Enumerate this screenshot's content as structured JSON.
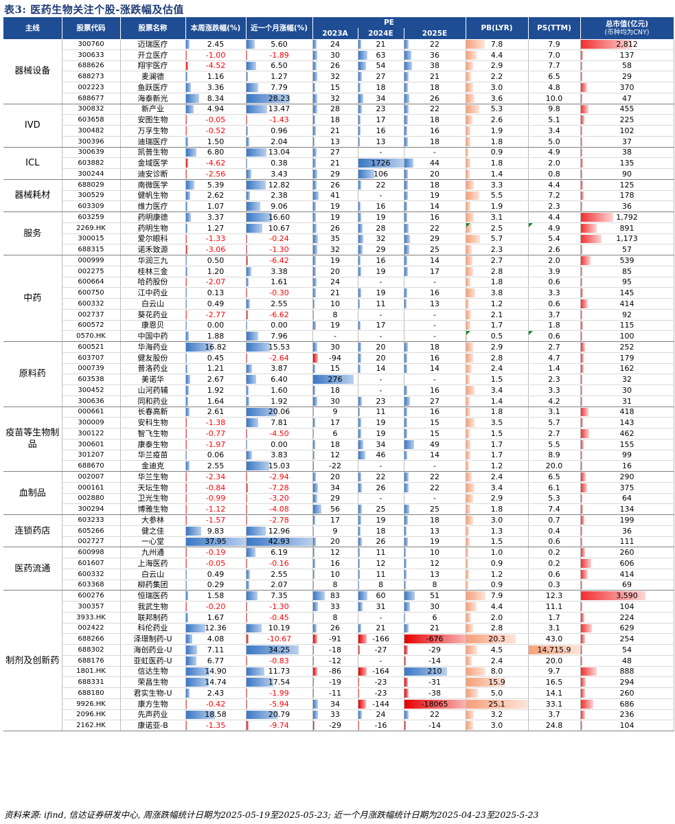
{
  "title": "表3: 医药生物关注个股-涨跌幅及估值",
  "headers": {
    "sector": "主线",
    "code": "股票代码",
    "name": "股票名称",
    "week": "本周涨跌幅(%)",
    "month": "近一个月涨幅(%)",
    "pe": "PE",
    "pe2023": "2023A",
    "pe2024": "2024E",
    "pe2025": "2025E",
    "pb": "PB(LYR)",
    "ps": "PS(TTM)",
    "mv": "总市值(亿元)",
    "mv_note": "(币种均为CNY)"
  },
  "colors": {
    "header_bg": "#1e4d94",
    "positive_bar": "#3b78c4",
    "negative_bar": "#e60000",
    "negative_text": "#ff0000",
    "pb_bar": "#f6a07a",
    "mv_bar": "#f03030"
  },
  "groups": [
    {
      "name": "器械设备",
      "rows": [
        [
          "300760",
          "迈瑞医疗",
          "2.45",
          "5.60",
          "24",
          "21",
          "22",
          "7.8",
          "7.9",
          "2,812"
        ],
        [
          "300633",
          "开立医疗",
          "-1.00",
          "-1.89",
          "30",
          "63",
          "36",
          "4.4",
          "7.0",
          "137"
        ],
        [
          "688626",
          "翔宇医疗",
          "-4.52",
          "6.50",
          "26",
          "54",
          "38",
          "2.9",
          "7.7",
          "58"
        ],
        [
          "688273",
          "麦澜德",
          "1.16",
          "1.27",
          "32",
          "27",
          "21",
          "2.2",
          "6.5",
          "29"
        ],
        [
          "002223",
          "鱼跃医疗",
          "3.36",
          "7.79",
          "15",
          "18",
          "18",
          "3.0",
          "4.8",
          "370"
        ],
        [
          "688677",
          "海泰新光",
          "8.34",
          "28.23",
          "32",
          "34",
          "26",
          "3.6",
          "10.0",
          "47"
        ]
      ]
    },
    {
      "name": "IVD",
      "rows": [
        [
          "300832",
          "新产业",
          "4.94",
          "13.47",
          "28",
          "23",
          "22",
          "5.3",
          "9.8",
          "455"
        ],
        [
          "603658",
          "安图生物",
          "-0.05",
          "-1.43",
          "18",
          "17",
          "18",
          "2.6",
          "5.1",
          "225"
        ],
        [
          "300482",
          "万孚生物",
          "-0.52",
          "0.96",
          "21",
          "16",
          "16",
          "1.9",
          "3.4",
          "102"
        ],
        [
          "300396",
          "迪瑞医疗",
          "1.50",
          "2.04",
          "13",
          "13",
          "18",
          "1.8",
          "5.0",
          "37"
        ]
      ]
    },
    {
      "name": "ICL",
      "rows": [
        [
          "300639",
          "凯普生物",
          "6.80",
          "13.04",
          "27",
          "-",
          "-",
          "0.9",
          "4.9",
          "38"
        ],
        [
          "603882",
          "金域医学",
          "-4.62",
          "0.38",
          "21",
          "1726",
          "44",
          "1.8",
          "2.0",
          "135"
        ],
        [
          "300244",
          "迪安诊断",
          "-2.56",
          "3.43",
          "29",
          "106",
          "20",
          "1.4",
          "0.8",
          "90"
        ]
      ]
    },
    {
      "name": "器械耗材",
      "rows": [
        [
          "688029",
          "南微医学",
          "5.39",
          "12.82",
          "26",
          "22",
          "18",
          "3.3",
          "4.4",
          "125"
        ],
        [
          "300529",
          "健帆生物",
          "2.62",
          "2.38",
          "41",
          "-",
          "19",
          "5.5",
          "7.2",
          "178"
        ],
        [
          "603309",
          "维力医疗",
          "1.07",
          "9.06",
          "19",
          "16",
          "14",
          "1.9",
          "2.3",
          "36"
        ]
      ]
    },
    {
      "name": "服务",
      "rows": [
        [
          "603259",
          "药明康德",
          "3.37",
          "16.60",
          "19",
          "19",
          "16",
          "3.1",
          "4.4",
          "1,792"
        ],
        [
          "2269.HK",
          "药明生物",
          "1.27",
          "10.67",
          "26",
          "28",
          "22",
          "2.5",
          "4.9",
          "891"
        ],
        [
          "300015",
          "爱尔眼科",
          "-1.33",
          "-0.24",
          "35",
          "32",
          "29",
          "5.7",
          "5.4",
          "1,173"
        ],
        [
          "688315",
          "诺禾致源",
          "-3.06",
          "-1.30",
          "32",
          "29",
          "25",
          "2.3",
          "2.6",
          "57"
        ]
      ]
    },
    {
      "name": "中药",
      "rows": [
        [
          "000999",
          "华润三九",
          "0.50",
          "-6.42",
          "19",
          "16",
          "14",
          "2.7",
          "2.0",
          "539"
        ],
        [
          "002275",
          "桂林三金",
          "1.20",
          "3.38",
          "20",
          "19",
          "17",
          "2.8",
          "3.9",
          "85"
        ],
        [
          "600664",
          "哈药股份",
          "-2.07",
          "1.61",
          "24",
          "-",
          "-",
          "1.8",
          "0.6",
          "95"
        ],
        [
          "600750",
          "江中药业",
          "0.13",
          "-0.30",
          "21",
          "19",
          "16",
          "3.8",
          "3.3",
          "145"
        ],
        [
          "600332",
          "白云山",
          "0.49",
          "2.55",
          "10",
          "11",
          "13",
          "1.2",
          "0.6",
          "414"
        ],
        [
          "002737",
          "葵花药业",
          "-2.77",
          "-6.62",
          "8",
          "-",
          "-",
          "2.1",
          "3.7",
          "92"
        ],
        [
          "600572",
          "康恩贝",
          "0.00",
          "0.00",
          "19",
          "17",
          "-",
          "1.7",
          "1.8",
          "115"
        ],
        [
          "0570.HK",
          "中国中药",
          "1.88",
          "7.96",
          "-",
          "-",
          "-",
          "0.5",
          "0.6",
          "100"
        ]
      ]
    },
    {
      "name": "原料药",
      "rows": [
        [
          "600521",
          "华海药业",
          "16.82",
          "15.53",
          "30",
          "20",
          "18",
          "2.9",
          "2.7",
          "252"
        ],
        [
          "603707",
          "健友股份",
          "0.45",
          "-2.64",
          "-94",
          "20",
          "16",
          "2.8",
          "4.7",
          "179"
        ],
        [
          "000739",
          "普洛药业",
          "1.21",
          "3.87",
          "15",
          "14",
          "14",
          "2.4",
          "1.4",
          "162"
        ],
        [
          "603538",
          "美诺华",
          "2.67",
          "6.40",
          "276",
          "-",
          "-",
          "1.5",
          "2.3",
          "32"
        ],
        [
          "300452",
          "山河药辅",
          "1.92",
          "1.60",
          "18",
          "-",
          "16",
          "3.4",
          "3.3",
          "30"
        ],
        [
          "300636",
          "同和药业",
          "1.64",
          "1.92",
          "30",
          "23",
          "27",
          "1.4",
          "4.2",
          "31"
        ]
      ]
    },
    {
      "name": "疫苗等生物制品",
      "rows": [
        [
          "000661",
          "长春高新",
          "2.61",
          "20.06",
          "9",
          "11",
          "16",
          "1.8",
          "3.1",
          "418"
        ],
        [
          "300009",
          "安科生物",
          "-1.38",
          "7.81",
          "17",
          "19",
          "15",
          "3.5",
          "5.7",
          "143"
        ],
        [
          "300122",
          "智飞生物",
          "-0.77",
          "-4.50",
          "6",
          "19",
          "15",
          "1.5",
          "2.7",
          "462"
        ],
        [
          "300601",
          "康泰生物",
          "-1.97",
          "0.00",
          "18",
          "34",
          "49",
          "1.7",
          "5.5",
          "155"
        ],
        [
          "301207",
          "华兰疫苗",
          "0.06",
          "3.83",
          "12",
          "46",
          "14",
          "1.7",
          "8.9",
          "99"
        ],
        [
          "688670",
          "金迪克",
          "2.55",
          "15.03",
          "-22",
          "-",
          "-",
          "1.2",
          "20.0",
          "16"
        ]
      ]
    },
    {
      "name": "血制品",
      "rows": [
        [
          "002007",
          "华兰生物",
          "-2.34",
          "-2.94",
          "20",
          "22",
          "22",
          "2.4",
          "6.5",
          "290"
        ],
        [
          "000161",
          "天坛生物",
          "-0.84",
          "-7.28",
          "34",
          "26",
          "22",
          "3.4",
          "6.1",
          "375"
        ],
        [
          "002880",
          "卫光生物",
          "-0.99",
          "-3.20",
          "29",
          "-",
          "-",
          "2.9",
          "5.3",
          "64"
        ],
        [
          "300294",
          "博雅生物",
          "-1.12",
          "-4.08",
          "56",
          "25",
          "25",
          "1.8",
          "7.4",
          "134"
        ]
      ]
    },
    {
      "name": "连锁药店",
      "rows": [
        [
          "603233",
          "大参林",
          "-1.57",
          "-2.78",
          "17",
          "19",
          "18",
          "3.0",
          "0.7",
          "199"
        ],
        [
          "605266",
          "健之佳",
          "9.83",
          "12.96",
          "9",
          "18",
          "13",
          "1.3",
          "0.4",
          "36"
        ],
        [
          "002727",
          "一心堂",
          "37.95",
          "42.93",
          "20",
          "26",
          "19",
          "1.5",
          "0.6",
          "111"
        ]
      ]
    },
    {
      "name": "医药流通",
      "rows": [
        [
          "600998",
          "九州通",
          "-0.19",
          "6.19",
          "12",
          "11",
          "10",
          "1.0",
          "0.2",
          "260"
        ],
        [
          "601607",
          "上海医药",
          "-0.05",
          "-0.16",
          "16",
          "12",
          "12",
          "0.9",
          "0.2",
          "606"
        ],
        [
          "600332",
          "白云山",
          "0.49",
          "2.55",
          "10",
          "11",
          "13",
          "1.2",
          "0.6",
          "414"
        ],
        [
          "603368",
          "柳药集团",
          "0.29",
          "2.07",
          "8",
          "8",
          "8",
          "0.9",
          "0.3",
          "69"
        ]
      ]
    },
    {
      "name": "制剂及创新药",
      "rows": [
        [
          "600276",
          "恒瑞医药",
          "1.58",
          "7.35",
          "83",
          "60",
          "51",
          "7.9",
          "12.3",
          "3,590"
        ],
        [
          "300357",
          "我武生物",
          "-0.20",
          "-1.30",
          "33",
          "31",
          "30",
          "4.4",
          "11.1",
          "104"
        ],
        [
          "3933.HK",
          "联邦制药",
          "1.67",
          "-0.45",
          "8",
          "-",
          "6",
          "2.0",
          "1.7",
          "224"
        ],
        [
          "002422",
          "科伦药业",
          "12.36",
          "10.19",
          "26",
          "21",
          "21",
          "2.8",
          "3.1",
          "629"
        ],
        [
          "688266",
          "泽璟制药-U",
          "4.08",
          "-10.67",
          "-91",
          "-166",
          "-676",
          "20.3",
          "43.0",
          "254"
        ],
        [
          "688302",
          "海创药业-U",
          "7.11",
          "34.25",
          "-18",
          "-27",
          "-29",
          "4.5",
          "14,715.9",
          "54"
        ],
        [
          "688176",
          "亚虹医药-U",
          "6.77",
          "-0.83",
          "-12",
          "-",
          "-14",
          "2.4",
          "20.0",
          "48"
        ],
        [
          "1801.HK",
          "信达生物",
          "14.90",
          "11.73",
          "-86",
          "-164",
          "210",
          "8.0",
          "9.7",
          "888"
        ],
        [
          "688331",
          "荣昌生物",
          "14.74",
          "17.54",
          "-19",
          "-23",
          "-31",
          "15.9",
          "16.5",
          "294"
        ],
        [
          "688180",
          "君实生物-U",
          "2.43",
          "-1.99",
          "-11",
          "-23",
          "-38",
          "5.0",
          "14.1",
          "260"
        ],
        [
          "9926.HK",
          "康方生物",
          "-0.42",
          "-5.94",
          "34",
          "-144",
          "-18065",
          "25.1",
          "33.1",
          "686"
        ],
        [
          "2096.HK",
          "先声药业",
          "18.58",
          "20.79",
          "33",
          "24",
          "22",
          "3.2",
          "3.7",
          "236"
        ],
        [
          "2162.HK",
          "康诺亚-B",
          "-1.35",
          "-9.74",
          "-29",
          "-16",
          "-14",
          "3.0",
          "24.8",
          "104"
        ]
      ]
    }
  ],
  "source": "资料来源: ifind, 信达证券研发中心, 周涨跌幅统计日期为2025-05-19至2025-05-23; 近一个月涨跌幅统计日期为2025-04-23至2025-5-23"
}
